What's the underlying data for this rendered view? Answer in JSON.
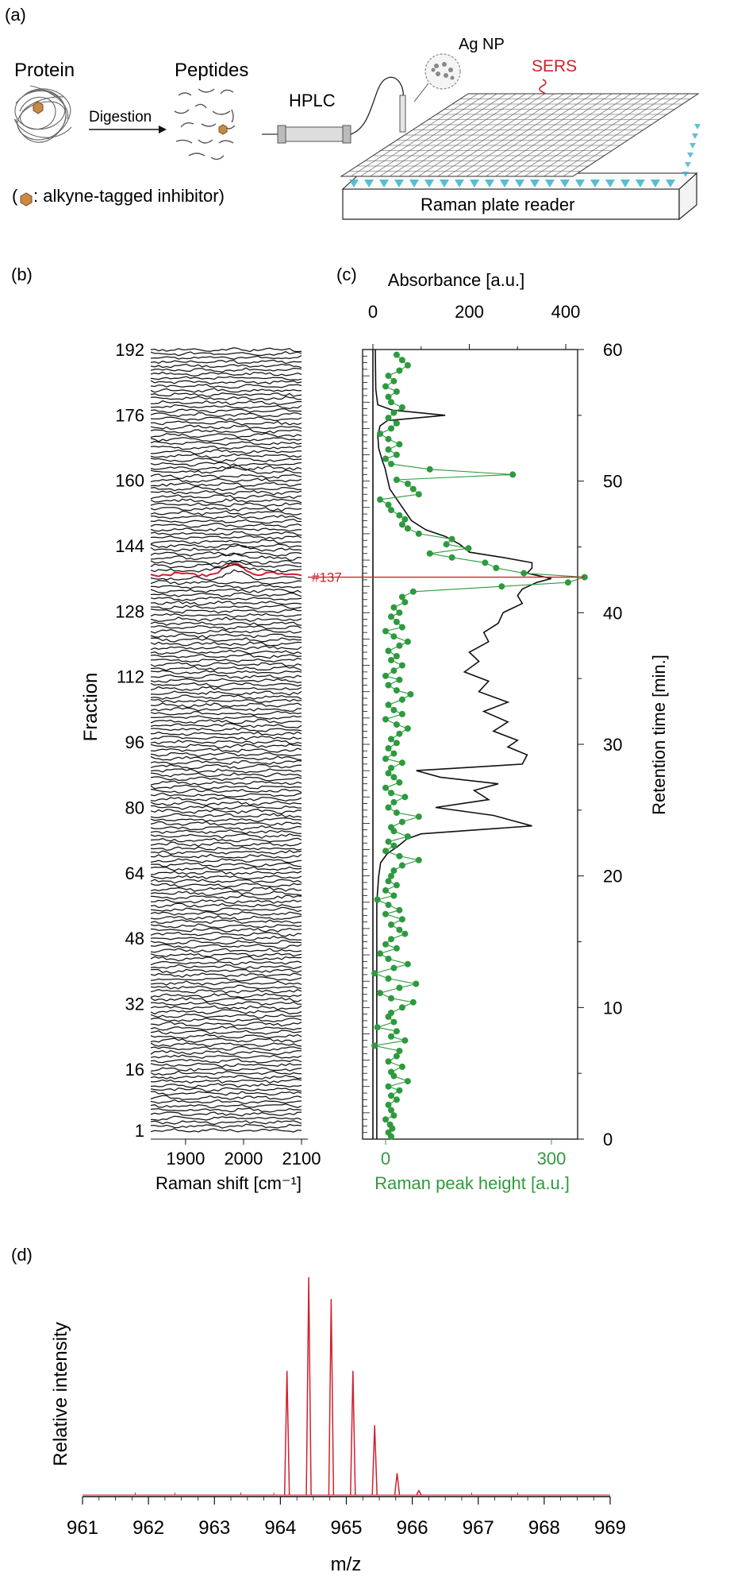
{
  "panel_a": {
    "label": "(a)",
    "protein_label": "Protein",
    "digestion_label": "Digestion",
    "peptides_label": "Peptides",
    "hplc_label": "HPLC",
    "agnp_label": "Ag NP",
    "sers_label": "SERS",
    "plate_label": "Raman plate reader",
    "legend_open": "(",
    "legend_text": ": alkyne-tagged inhibitor)"
  },
  "colors": {
    "red": "#d0202e",
    "green": "#2e9a3e",
    "black": "#111111",
    "cyan": "#39b3c9",
    "axis_green": "#2f9a3f"
  },
  "chart_data": [
    {
      "id": "b",
      "type": "line",
      "panel_label": "(b)",
      "xlabel": "Raman shift [cm⁻¹]",
      "ylabel": "Fraction",
      "xlim": [
        1840,
        2100
      ],
      "xticks": [
        "1900",
        "2000",
        "2100"
      ],
      "yticks": [
        "1",
        "16",
        "32",
        "48",
        "64",
        "80",
        "96",
        "112",
        "128",
        "144",
        "160",
        "176",
        "192"
      ],
      "n_fractions": 192,
      "highlight_fraction": 137,
      "highlight_peak_center": 1985,
      "peak_fractions": [
        {
          "fraction": 137,
          "height": 1.0
        },
        {
          "fraction": 136,
          "height": 0.6
        },
        {
          "fraction": 138,
          "height": 0.55
        },
        {
          "fraction": 139,
          "height": 0.4
        },
        {
          "fraction": 141,
          "height": 0.35
        },
        {
          "fraction": 143,
          "height": 0.3
        },
        {
          "fraction": 162,
          "height": 0.45
        }
      ]
    },
    {
      "id": "c",
      "type": "line",
      "panel_label": "(c)",
      "top_axis_label": "Absorbance [a.u.]",
      "top_xticks": [
        "0",
        "200",
        "400"
      ],
      "top_xlim": [
        0,
        450
      ],
      "bottom_axis_label": "Raman peak height [a.u.]",
      "bottom_xticks": [
        "0",
        "300"
      ],
      "bottom_xlim": [
        -50,
        370
      ],
      "right_axis_label": "Retention time [min.]",
      "right_yticks": [
        "0",
        "10",
        "20",
        "30",
        "40",
        "50",
        "60"
      ],
      "ylim": [
        0,
        60
      ],
      "annotation": "#137",
      "annotation_time": 42.7,
      "absorbance_series": {
        "name": "Absorbance",
        "points": [
          [
            0,
            8
          ],
          [
            12,
            8
          ],
          [
            18,
            8
          ],
          [
            20,
            12
          ],
          [
            21,
            16
          ],
          [
            21.7,
            30
          ],
          [
            22.2,
            50
          ],
          [
            22.8,
            70
          ],
          [
            23.2,
            100
          ],
          [
            23.8,
            330
          ],
          [
            24.2,
            290
          ],
          [
            24.6,
            250
          ],
          [
            25.2,
            130
          ],
          [
            25.8,
            240
          ],
          [
            26.5,
            210
          ],
          [
            27,
            260
          ],
          [
            27.5,
            140
          ],
          [
            28,
            90
          ],
          [
            28.5,
            310
          ],
          [
            29.2,
            320
          ],
          [
            29.8,
            280
          ],
          [
            30.3,
            300
          ],
          [
            31,
            250
          ],
          [
            31.7,
            280
          ],
          [
            32.5,
            230
          ],
          [
            33.2,
            280
          ],
          [
            34,
            220
          ],
          [
            34.8,
            240
          ],
          [
            35.5,
            190
          ],
          [
            36.3,
            220
          ],
          [
            37,
            200
          ],
          [
            37.8,
            240
          ],
          [
            38.5,
            230
          ],
          [
            39.2,
            260
          ],
          [
            40,
            270
          ],
          [
            40.7,
            310
          ],
          [
            41.3,
            300
          ],
          [
            41.8,
            310
          ],
          [
            42.3,
            340
          ],
          [
            42.6,
            370
          ],
          [
            43,
            320
          ],
          [
            43.4,
            330
          ],
          [
            43.8,
            330
          ],
          [
            44.2,
            270
          ],
          [
            44.6,
            200
          ],
          [
            45.2,
            180
          ],
          [
            45.8,
            150
          ],
          [
            46.3,
            110
          ],
          [
            47,
            80
          ],
          [
            47.8,
            65
          ],
          [
            48.6,
            50
          ],
          [
            49.4,
            35
          ],
          [
            50.2,
            30
          ],
          [
            51,
            25
          ],
          [
            51.5,
            20
          ],
          [
            52.5,
            12
          ],
          [
            53.5,
            10
          ],
          [
            54.2,
            15
          ],
          [
            54.6,
            30
          ],
          [
            55,
            150
          ],
          [
            55.4,
            40
          ],
          [
            55.8,
            10
          ],
          [
            57,
            6
          ],
          [
            60,
            5
          ]
        ]
      },
      "raman_series": {
        "name": "Raman peak height",
        "points": [
          [
            0.2,
            10
          ],
          [
            0.5,
            5
          ],
          [
            0.8,
            12
          ],
          [
            1.1,
            8
          ],
          [
            1.5,
            0
          ],
          [
            1.8,
            15
          ],
          [
            2.2,
            10
          ],
          [
            2.6,
            5
          ],
          [
            3,
            20
          ],
          [
            3.3,
            10
          ],
          [
            3.7,
            25
          ],
          [
            4,
            5
          ],
          [
            4.4,
            40
          ],
          [
            4.8,
            15
          ],
          [
            5.1,
            10
          ],
          [
            5.5,
            30
          ],
          [
            5.9,
            5
          ],
          [
            6.3,
            20
          ],
          [
            6.7,
            25
          ],
          [
            7.1,
            -20
          ],
          [
            7.5,
            35
          ],
          [
            7.8,
            10
          ],
          [
            8.2,
            20
          ],
          [
            8.5,
            -15
          ],
          [
            8.9,
            15
          ],
          [
            9.3,
            5
          ],
          [
            9.6,
            10
          ],
          [
            10,
            30
          ],
          [
            10.4,
            50
          ],
          [
            10.7,
            10
          ],
          [
            11.1,
            -10
          ],
          [
            11.5,
            25
          ],
          [
            11.8,
            55
          ],
          [
            12.2,
            5
          ],
          [
            12.6,
            -20
          ],
          [
            13,
            15
          ],
          [
            13.3,
            40
          ],
          [
            13.7,
            5
          ],
          [
            14.1,
            -10
          ],
          [
            14.5,
            20
          ],
          [
            14.8,
            0
          ],
          [
            15.2,
            10
          ],
          [
            15.6,
            35
          ],
          [
            15.9,
            25
          ],
          [
            16.3,
            10
          ],
          [
            16.7,
            30
          ],
          [
            17.1,
            0
          ],
          [
            17.4,
            25
          ],
          [
            17.8,
            5
          ],
          [
            18.2,
            -15
          ],
          [
            18.5,
            15
          ],
          [
            18.9,
            0
          ],
          [
            19.3,
            20
          ],
          [
            19.6,
            5
          ],
          [
            20,
            10
          ],
          [
            20.4,
            15
          ],
          [
            20.8,
            30
          ],
          [
            21.2,
            60
          ],
          [
            21.5,
            25
          ],
          [
            21.9,
            0
          ],
          [
            22.3,
            15
          ],
          [
            22.6,
            5
          ],
          [
            23,
            40
          ],
          [
            23.4,
            15
          ],
          [
            23.7,
            10
          ],
          [
            24.1,
            30
          ],
          [
            24.5,
            60
          ],
          [
            24.8,
            20
          ],
          [
            25.2,
            5
          ],
          [
            25.6,
            15
          ],
          [
            26,
            35
          ],
          [
            26.3,
            10
          ],
          [
            26.7,
            0
          ],
          [
            27.1,
            25
          ],
          [
            27.5,
            15
          ],
          [
            27.8,
            5
          ],
          [
            28.2,
            10
          ],
          [
            28.6,
            30
          ],
          [
            28.9,
            0
          ],
          [
            29.3,
            15
          ],
          [
            29.7,
            5
          ],
          [
            30.1,
            20
          ],
          [
            30.4,
            10
          ],
          [
            30.8,
            25
          ],
          [
            31.2,
            40
          ],
          [
            31.5,
            20
          ],
          [
            31.9,
            0
          ],
          [
            32.3,
            30
          ],
          [
            32.6,
            15
          ],
          [
            33,
            5
          ],
          [
            33.4,
            30
          ],
          [
            33.8,
            45
          ],
          [
            34.1,
            20
          ],
          [
            34.5,
            5
          ],
          [
            34.9,
            25
          ],
          [
            35.2,
            0
          ],
          [
            35.6,
            15
          ],
          [
            36,
            30
          ],
          [
            36.4,
            10
          ],
          [
            36.7,
            20
          ],
          [
            37.1,
            5
          ],
          [
            37.5,
            25
          ],
          [
            37.8,
            40
          ],
          [
            38.2,
            15
          ],
          [
            38.6,
            0
          ],
          [
            38.9,
            30
          ],
          [
            39.3,
            20
          ],
          [
            39.7,
            10
          ],
          [
            40,
            25
          ],
          [
            40.4,
            15
          ],
          [
            40.8,
            35
          ],
          [
            41.2,
            30
          ],
          [
            41.6,
            50
          ],
          [
            42,
            210
          ],
          [
            42.3,
            330
          ],
          [
            42.7,
            360
          ],
          [
            43,
            250
          ],
          [
            43.4,
            200
          ],
          [
            43.8,
            180
          ],
          [
            44.2,
            120
          ],
          [
            44.5,
            80
          ],
          [
            44.9,
            150
          ],
          [
            45.2,
            110
          ],
          [
            45.6,
            120
          ],
          [
            46,
            60
          ],
          [
            46.4,
            40
          ],
          [
            46.7,
            30
          ],
          [
            47.1,
            35
          ],
          [
            47.4,
            25
          ],
          [
            47.8,
            10
          ],
          [
            48.2,
            5
          ],
          [
            48.6,
            -10
          ],
          [
            49,
            60
          ],
          [
            49.4,
            50
          ],
          [
            49.8,
            40
          ],
          [
            50.1,
            20
          ],
          [
            50.5,
            230
          ],
          [
            50.9,
            80
          ],
          [
            51.3,
            10
          ],
          [
            51.7,
            0
          ],
          [
            52,
            20
          ],
          [
            52.4,
            5
          ],
          [
            52.8,
            25
          ],
          [
            53.2,
            5
          ],
          [
            53.6,
            -10
          ],
          [
            54,
            10
          ],
          [
            54.4,
            20
          ],
          [
            54.8,
            5
          ],
          [
            55.2,
            15
          ],
          [
            55.6,
            30
          ],
          [
            56,
            10
          ],
          [
            56.4,
            5
          ],
          [
            56.8,
            20
          ],
          [
            57.2,
            0
          ],
          [
            57.6,
            15
          ],
          [
            58,
            5
          ],
          [
            58.4,
            25
          ],
          [
            58.8,
            40
          ],
          [
            59.2,
            30
          ],
          [
            59.6,
            20
          ]
        ]
      }
    },
    {
      "id": "d",
      "type": "line",
      "panel_label": "(d)",
      "xlabel": "m/z",
      "ylabel": "Relative intensity",
      "xlim": [
        961,
        969
      ],
      "xticks": [
        "961",
        "962",
        "963",
        "964",
        "965",
        "966",
        "967",
        "968",
        "969"
      ],
      "ylim": [
        0,
        1.05
      ],
      "peaks": [
        {
          "mz": 964.1,
          "intensity": 0.57
        },
        {
          "mz": 964.43,
          "intensity": 1.0
        },
        {
          "mz": 964.77,
          "intensity": 0.9
        },
        {
          "mz": 965.1,
          "intensity": 0.57
        },
        {
          "mz": 965.43,
          "intensity": 0.32
        },
        {
          "mz": 965.77,
          "intensity": 0.1
        },
        {
          "mz": 966.1,
          "intensity": 0.02
        }
      ]
    }
  ]
}
